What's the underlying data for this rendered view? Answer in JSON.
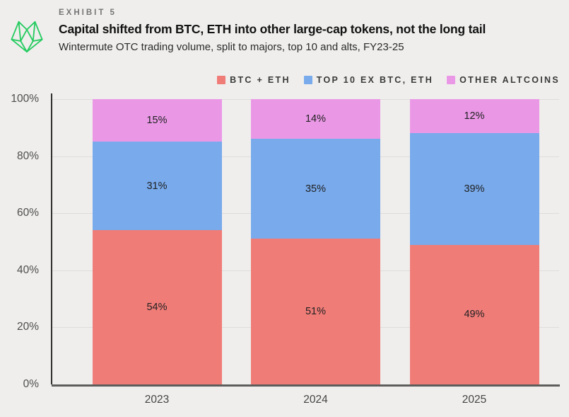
{
  "page": {
    "background": "#efeeec"
  },
  "header": {
    "exhibit_label": "EXHIBIT 5",
    "title": "Capital shifted from BTC, ETH into other large-cap tokens, not the long tail",
    "subtitle": "Wintermute OTC trading volume, split to majors, top 10 and alts, FY23-25",
    "logo_color": "#25cb60"
  },
  "chart_data": {
    "type": "bar",
    "stacked": true,
    "title": "Capital shifted from BTC, ETH into other large-cap tokens, not the long tail",
    "subtitle": "Wintermute OTC trading volume, split to majors, top 10 and alts, FY23-25",
    "categories": [
      "2023",
      "2024",
      "2025"
    ],
    "series": [
      {
        "name": "BTC + ETH",
        "color": "#f07c78",
        "values": [
          54,
          51,
          49
        ]
      },
      {
        "name": "TOP 10 EX BTC, ETH",
        "color": "#78aaec",
        "values": [
          31,
          35,
          39
        ]
      },
      {
        "name": "OTHER ALTCOINS",
        "color": "#ea98e6",
        "values": [
          15,
          14,
          12
        ]
      }
    ],
    "value_suffix": "%",
    "xlabel": "",
    "ylabel": "",
    "ylim": [
      0,
      100
    ],
    "yticks": [
      0,
      20,
      40,
      60,
      80,
      100
    ],
    "ytick_suffix": "%",
    "grid": true,
    "legend_position": "top-right",
    "colors": {
      "gridline": "#dedddb",
      "y_axis_line": "#2e2e2c",
      "x_axis_line": "#5d5d5b"
    }
  }
}
